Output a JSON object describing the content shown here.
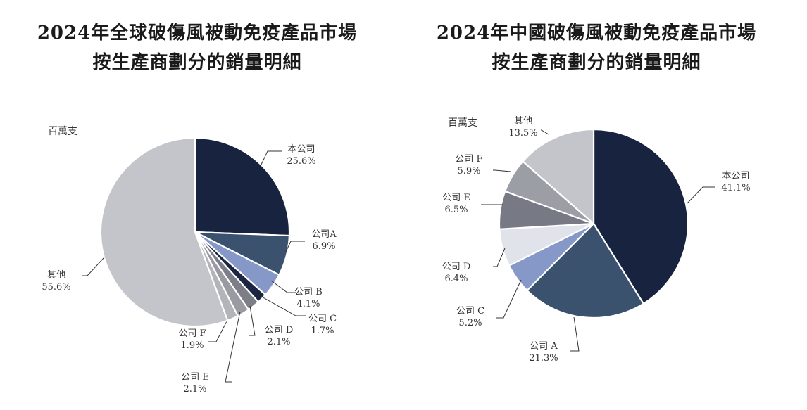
{
  "charts": {
    "left": {
      "title_line1": "2024年全球破傷風被動免疫產品市場",
      "title_line2": "按生產商劃分的銷量明細",
      "unit": "百萬支"
    },
    "right": {
      "title_line1": "2024年中國破傷風被動免疫產品市場",
      "title_line2": "按生產商劃分的銷量明細",
      "unit": "百萬支"
    }
  },
  "colors": {
    "本公司": "#17233f",
    "公司A": "#3a526e",
    "公司B": "#8598c8",
    "公司C": "#1c2640",
    "公司D_left": "#7d7e87",
    "公司E_left": "#9a9ba2",
    "公司F_left": "#b3b4b9",
    "其他": "#c4c5ca",
    "公司D_right": "#e0e3ea",
    "公司E_right": "#777a84",
    "公司F_right": "#9c9ea5"
  },
  "chart_data": [
    {
      "type": "pie",
      "title": "2024年全球破傷風被動免疫產品市場按生產商劃分的銷量明細",
      "unit": "百萬支",
      "slices": [
        {
          "name": "本公司",
          "display_name": "本公司",
          "value": 25.6,
          "label": "25.6%",
          "color_key": "本公司"
        },
        {
          "name": "公司A",
          "display_name": "公司A",
          "value": 6.9,
          "label": "6.9%",
          "color_key": "公司A"
        },
        {
          "name": "公司B",
          "display_name": "公司 B",
          "value": 4.1,
          "label": "4.1%",
          "color_key": "公司B"
        },
        {
          "name": "公司C",
          "display_name": "公司 C",
          "value": 1.7,
          "label": "1.7%",
          "color_key": "公司C"
        },
        {
          "name": "公司D",
          "display_name": "公司 D",
          "value": 2.1,
          "label": "2.1%",
          "color_key": "公司D_left"
        },
        {
          "name": "公司E",
          "display_name": "公司 E",
          "value": 2.1,
          "label": "2.1%",
          "color_key": "公司E_left"
        },
        {
          "name": "公司F",
          "display_name": "公司 F",
          "value": 1.9,
          "label": "1.9%",
          "color_key": "公司F_left"
        },
        {
          "name": "其他",
          "display_name": "其他",
          "value": 55.6,
          "label": "55.6%",
          "color_key": "其他"
        }
      ]
    },
    {
      "type": "pie",
      "title": "2024年中國破傷風被動免疫產品市場按生產商劃分的銷量明細",
      "unit": "百萬支",
      "slices": [
        {
          "name": "本公司",
          "display_name": "本公司",
          "value": 41.1,
          "label": "41.1%",
          "color_key": "本公司"
        },
        {
          "name": "公司A",
          "display_name": "公司 A",
          "value": 21.3,
          "label": "21.3%",
          "color_key": "公司A"
        },
        {
          "name": "公司C",
          "display_name": "公司 C",
          "value": 5.2,
          "label": "5.2%",
          "color_key": "公司B"
        },
        {
          "name": "公司D",
          "display_name": "公司 D",
          "value": 6.4,
          "label": "6.4%",
          "color_key": "公司D_right"
        },
        {
          "name": "公司E",
          "display_name": "公司 E",
          "value": 6.5,
          "label": "6.5%",
          "color_key": "公司E_right"
        },
        {
          "name": "公司F",
          "display_name": "公司 F",
          "value": 5.9,
          "label": "5.9%",
          "color_key": "公司F_right"
        },
        {
          "name": "其他",
          "display_name": "其他",
          "value": 13.5,
          "label": "13.5%",
          "color_key": "其他"
        }
      ]
    }
  ]
}
